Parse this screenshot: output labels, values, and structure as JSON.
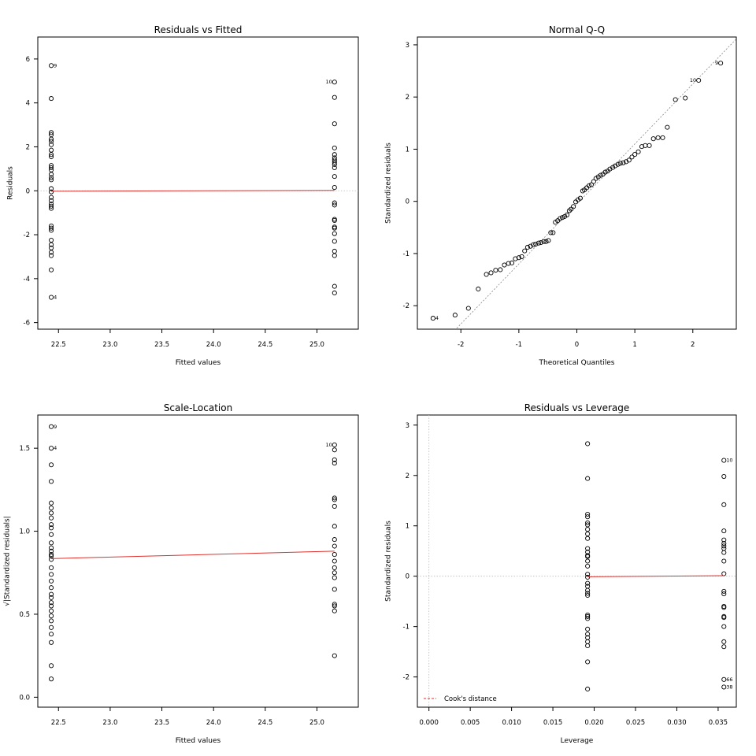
{
  "chart_data": [
    {
      "id": "rvf",
      "type": "scatter",
      "title": "Residuals vs Fitted",
      "xlabel": "Fitted values",
      "ylabel": "Residuals",
      "xlim": [
        22.3,
        25.4
      ],
      "ylim": [
        -6.3,
        7.0
      ],
      "xticks": [
        {
          "v": 22.5,
          "label": "22.5"
        },
        {
          "v": 23.0,
          "label": "23.0"
        },
        {
          "v": 23.5,
          "label": "23.5"
        },
        {
          "v": 24.0,
          "label": "24.0"
        },
        {
          "v": 24.5,
          "label": "24.5"
        },
        {
          "v": 25.0,
          "label": "25.0"
        }
      ],
      "yticks": [
        {
          "v": -6,
          "label": "-6"
        },
        {
          "v": -4,
          "label": "-4"
        },
        {
          "v": -2,
          "label": "-2"
        },
        {
          "v": 0,
          "label": "0"
        },
        {
          "v": 2,
          "label": "2"
        },
        {
          "v": 4,
          "label": "4"
        },
        {
          "v": 6,
          "label": "6"
        }
      ],
      "points": {
        "groups": [
          {
            "x": 22.43,
            "y": [
              5.7,
              4.2,
              2.65,
              2.55,
              2.35,
              2.25,
              2.1,
              1.85,
              1.65,
              1.55,
              1.15,
              1.05,
              0.95,
              0.75,
              0.6,
              0.5,
              0.1,
              -0.05,
              -0.3,
              -0.45,
              -0.6,
              -0.7,
              -0.8,
              -1.6,
              -1.7,
              -1.8,
              -2.25,
              -2.45,
              -2.6,
              -2.8,
              -2.95,
              -3.6,
              -4.85
            ]
          },
          {
            "x": 25.17,
            "y": [
              4.95,
              4.25,
              3.05,
              1.95,
              1.65,
              1.5,
              1.4,
              1.3,
              1.2,
              1.05,
              0.65,
              0.15,
              -0.55,
              -0.65,
              -1.3,
              -1.35,
              -1.65,
              -1.7,
              -1.95,
              -2.3,
              -2.75,
              -2.95,
              -4.35,
              -4.65
            ]
          }
        ]
      },
      "smooth": [
        [
          22.43,
          -0.02
        ],
        [
          25.17,
          0.02
        ]
      ],
      "labels": [
        {
          "x": 22.43,
          "y": 5.7,
          "text": "9",
          "side": "right"
        },
        {
          "x": 22.43,
          "y": -4.85,
          "text": "4",
          "side": "right"
        },
        {
          "x": 25.17,
          "y": 4.95,
          "text": "10",
          "side": "left"
        }
      ]
    },
    {
      "id": "qq",
      "type": "scatter",
      "title": "Normal Q-Q",
      "xlabel": "Theoretical Quantiles",
      "ylabel": "Standardized residuals",
      "xlim": [
        -2.75,
        2.75
      ],
      "ylim": [
        -2.45,
        3.15
      ],
      "xticks": [
        {
          "v": -2,
          "label": "-2"
        },
        {
          "v": -1,
          "label": "-1"
        },
        {
          "v": 0,
          "label": "0"
        },
        {
          "v": 1,
          "label": "1"
        },
        {
          "v": 2,
          "label": "2"
        }
      ],
      "yticks": [
        {
          "v": -2,
          "label": "-2"
        },
        {
          "v": -1,
          "label": "-1"
        },
        {
          "v": 0,
          "label": "0"
        },
        {
          "v": 1,
          "label": "1"
        },
        {
          "v": 2,
          "label": "2"
        },
        {
          "v": 3,
          "label": "3"
        }
      ],
      "points": {
        "xy": [
          [
            -2.48,
            -2.24
          ],
          [
            -2.1,
            -2.18
          ],
          [
            -1.87,
            -2.05
          ],
          [
            -1.7,
            -1.68
          ],
          [
            -1.56,
            -1.4
          ],
          [
            -1.48,
            -1.37
          ],
          [
            -1.4,
            -1.32
          ],
          [
            -1.32,
            -1.31
          ],
          [
            -1.25,
            -1.22
          ],
          [
            -1.18,
            -1.19
          ],
          [
            -1.12,
            -1.18
          ],
          [
            -1.06,
            -1.1
          ],
          [
            -1.0,
            -1.08
          ],
          [
            -0.95,
            -1.06
          ],
          [
            -0.9,
            -0.95
          ],
          [
            -0.85,
            -0.88
          ],
          [
            -0.8,
            -0.86
          ],
          [
            -0.75,
            -0.83
          ],
          [
            -0.71,
            -0.82
          ],
          [
            -0.66,
            -0.8
          ],
          [
            -0.62,
            -0.79
          ],
          [
            -0.57,
            -0.77
          ],
          [
            -0.53,
            -0.77
          ],
          [
            -0.49,
            -0.75
          ],
          [
            -0.45,
            -0.6
          ],
          [
            -0.41,
            -0.6
          ],
          [
            -0.37,
            -0.4
          ],
          [
            -0.33,
            -0.37
          ],
          [
            -0.29,
            -0.33
          ],
          [
            -0.25,
            -0.31
          ],
          [
            -0.21,
            -0.29
          ],
          [
            -0.17,
            -0.26
          ],
          [
            -0.13,
            -0.18
          ],
          [
            -0.1,
            -0.15
          ],
          [
            -0.06,
            -0.1
          ],
          [
            -0.02,
            -0.01
          ],
          [
            0.02,
            0.03
          ],
          [
            0.06,
            0.06
          ],
          [
            0.1,
            0.2
          ],
          [
            0.13,
            0.22
          ],
          [
            0.17,
            0.26
          ],
          [
            0.21,
            0.3
          ],
          [
            0.25,
            0.32
          ],
          [
            0.29,
            0.38
          ],
          [
            0.33,
            0.44
          ],
          [
            0.37,
            0.47
          ],
          [
            0.41,
            0.5
          ],
          [
            0.45,
            0.52
          ],
          [
            0.49,
            0.56
          ],
          [
            0.53,
            0.58
          ],
          [
            0.57,
            0.62
          ],
          [
            0.62,
            0.65
          ],
          [
            0.66,
            0.68
          ],
          [
            0.71,
            0.71
          ],
          [
            0.75,
            0.73
          ],
          [
            0.8,
            0.74
          ],
          [
            0.85,
            0.76
          ],
          [
            0.9,
            0.79
          ],
          [
            0.95,
            0.85
          ],
          [
            1.0,
            0.9
          ],
          [
            1.06,
            0.95
          ],
          [
            1.12,
            1.05
          ],
          [
            1.18,
            1.07
          ],
          [
            1.25,
            1.07
          ],
          [
            1.32,
            1.2
          ],
          [
            1.4,
            1.22
          ],
          [
            1.48,
            1.22
          ],
          [
            1.56,
            1.42
          ],
          [
            1.7,
            1.95
          ],
          [
            1.87,
            1.98
          ],
          [
            2.1,
            2.32
          ],
          [
            2.48,
            2.65
          ]
        ]
      },
      "refline": {
        "slope": 1.15,
        "intercept": -0.05
      },
      "labels": [
        {
          "x": -2.48,
          "y": -2.24,
          "text": "4",
          "side": "right"
        },
        {
          "x": 2.1,
          "y": 2.32,
          "text": "10",
          "side": "left"
        },
        {
          "x": 2.48,
          "y": 2.65,
          "text": "9",
          "side": "left"
        }
      ]
    },
    {
      "id": "sl",
      "type": "scatter",
      "title": "Scale-Location",
      "xlabel": "Fitted values",
      "ylabel": "√|Standardized residuals|",
      "xlim": [
        22.3,
        25.4
      ],
      "ylim": [
        -0.06,
        1.7
      ],
      "xticks": [
        {
          "v": 22.5,
          "label": "22.5"
        },
        {
          "v": 23.0,
          "label": "23.0"
        },
        {
          "v": 23.5,
          "label": "23.5"
        },
        {
          "v": 24.0,
          "label": "24.0"
        },
        {
          "v": 24.5,
          "label": "24.5"
        },
        {
          "v": 25.0,
          "label": "25.0"
        }
      ],
      "yticks": [
        {
          "v": 0.0,
          "label": "0.0"
        },
        {
          "v": 0.5,
          "label": "0.5"
        },
        {
          "v": 1.0,
          "label": "1.0"
        },
        {
          "v": 1.5,
          "label": "1.5"
        }
      ],
      "points": {
        "groups": [
          {
            "x": 22.43,
            "y": [
              1.63,
              1.5,
              1.4,
              1.3,
              1.17,
              1.14,
              1.11,
              1.08,
              1.04,
              1.02,
              0.98,
              0.93,
              0.9,
              0.88,
              0.86,
              0.85,
              0.83,
              0.78,
              0.74,
              0.7,
              0.66,
              0.62,
              0.6,
              0.57,
              0.55,
              0.52,
              0.49,
              0.46,
              0.42,
              0.38,
              0.33,
              0.19,
              0.11
            ]
          },
          {
            "x": 25.17,
            "y": [
              1.52,
              1.49,
              1.43,
              1.41,
              1.2,
              1.19,
              1.15,
              1.03,
              0.95,
              0.91,
              0.86,
              0.82,
              0.78,
              0.75,
              0.72,
              0.65,
              0.56,
              0.55,
              0.52,
              0.25
            ]
          }
        ]
      },
      "smooth": [
        [
          22.43,
          0.835
        ],
        [
          25.17,
          0.88
        ]
      ],
      "labels": [
        {
          "x": 22.43,
          "y": 1.63,
          "text": "9",
          "side": "right"
        },
        {
          "x": 22.43,
          "y": 1.5,
          "text": "4",
          "side": "right"
        },
        {
          "x": 25.17,
          "y": 1.52,
          "text": "10",
          "side": "left"
        }
      ]
    },
    {
      "id": "rvl",
      "type": "scatter",
      "title": "Residuals vs Leverage",
      "xlabel": "Leverage",
      "ylabel": "Standardized residuals",
      "xlim": [
        -0.0014,
        0.0372
      ],
      "ylim": [
        -2.6,
        3.2
      ],
      "xticks": [
        {
          "v": 0.0,
          "label": "0.000"
        },
        {
          "v": 0.005,
          "label": "0.005"
        },
        {
          "v": 0.01,
          "label": "0.010"
        },
        {
          "v": 0.015,
          "label": "0.015"
        },
        {
          "v": 0.02,
          "label": "0.020"
        },
        {
          "v": 0.025,
          "label": "0.025"
        },
        {
          "v": 0.03,
          "label": "0.030"
        },
        {
          "v": 0.035,
          "label": "0.035"
        }
      ],
      "yticks": [
        {
          "v": -2,
          "label": "-2"
        },
        {
          "v": -1,
          "label": "-1"
        },
        {
          "v": 0,
          "label": "0"
        },
        {
          "v": 1,
          "label": "1"
        },
        {
          "v": 2,
          "label": "2"
        },
        {
          "v": 3,
          "label": "3"
        }
      ],
      "points": {
        "groups": [
          {
            "x": 0.0192,
            "y": [
              2.63,
              1.94,
              1.23,
              1.18,
              1.06,
              1.02,
              0.93,
              0.84,
              0.75,
              0.55,
              0.48,
              0.41,
              0.39,
              0.3,
              0.2,
              0.04,
              -0.02,
              -0.14,
              -0.2,
              -0.28,
              -0.34,
              -0.38,
              -0.77,
              -0.8,
              -0.84,
              -1.05,
              -1.15,
              -1.22,
              -1.3,
              -1.38,
              -1.7,
              -2.24
            ]
          },
          {
            "x": 0.0357,
            "y": [
              2.3,
              1.98,
              1.42,
              0.9,
              0.72,
              0.65,
              0.6,
              0.55,
              0.47,
              0.3,
              0.05,
              -0.3,
              -0.35,
              -0.6,
              -0.62,
              -0.8,
              -0.82,
              -1.0,
              -1.3,
              -1.4,
              -2.05,
              -2.2
            ]
          }
        ]
      },
      "smooth": [
        [
          0.0192,
          -0.01
        ],
        [
          0.0357,
          0.01
        ]
      ],
      "labels": [
        {
          "x": 0.0357,
          "y": 2.3,
          "text": "10",
          "side": "right"
        },
        {
          "x": 0.0357,
          "y": -2.05,
          "text": "66",
          "side": "right"
        },
        {
          "x": 0.0357,
          "y": -2.2,
          "text": "38",
          "side": "right"
        }
      ],
      "vline": 0,
      "hline": 0,
      "legend": {
        "label": "Cook's distance",
        "placement": "bottom-left"
      }
    }
  ]
}
